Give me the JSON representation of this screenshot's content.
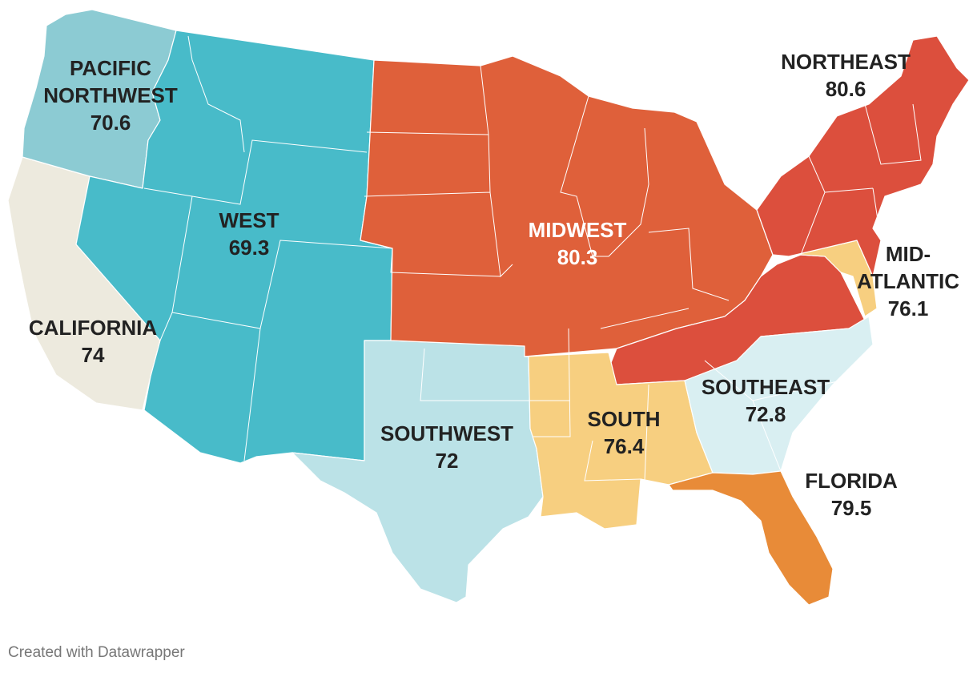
{
  "map": {
    "credit": "Created with Datawrapper",
    "regions": [
      {
        "id": "pacific-northwest",
        "name_lines": [
          "PACIFIC",
          "NORTHWEST"
        ],
        "value": "70.6",
        "color": "#8ccbd3"
      },
      {
        "id": "california",
        "name_lines": [
          "CALIFORNIA"
        ],
        "value": "74",
        "color": "#edeade"
      },
      {
        "id": "west",
        "name_lines": [
          "WEST"
        ],
        "value": "69.3",
        "color": "#48bbc9"
      },
      {
        "id": "southwest",
        "name_lines": [
          "SOUTHWEST"
        ],
        "value": "72",
        "color": "#bbe2e7"
      },
      {
        "id": "midwest",
        "name_lines": [
          "MIDWEST"
        ],
        "value": "80.3",
        "color": "#df603a"
      },
      {
        "id": "south",
        "name_lines": [
          "SOUTH"
        ],
        "value": "76.4",
        "color": "#f7cf80"
      },
      {
        "id": "southeast",
        "name_lines": [
          "SOUTHEAST"
        ],
        "value": "72.8",
        "color": "#d9eff2"
      },
      {
        "id": "florida",
        "name_lines": [
          "FLORIDA"
        ],
        "value": "79.5",
        "color": "#e88b38"
      },
      {
        "id": "mid-atlantic",
        "name_lines": [
          "MID-",
          "ATLANTIC"
        ],
        "value": "76.1",
        "color": "#f7cf80"
      },
      {
        "id": "northeast",
        "name_lines": [
          "NORTHEAST"
        ],
        "value": "80.6",
        "color": "#dc4f3d"
      },
      {
        "id": "upper-south",
        "name_lines": [],
        "value": "",
        "color": "#dc4f3d"
      }
    ]
  }
}
